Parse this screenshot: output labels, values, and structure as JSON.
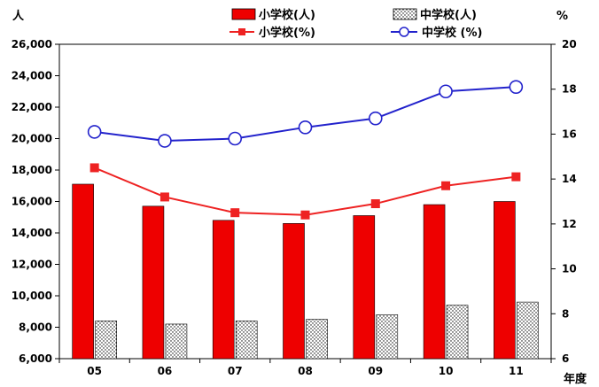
{
  "chart_data": {
    "type": "bar",
    "categories": [
      "05",
      "06",
      "07",
      "08",
      "09",
      "10",
      "11"
    ],
    "xlabel": "年度",
    "y_left": {
      "unit": "人",
      "ylim": [
        6000,
        26000
      ],
      "ticks": [
        "6,000",
        "8,000",
        "10,000",
        "12,000",
        "14,000",
        "16,000",
        "18,000",
        "20,000",
        "22,000",
        "24,000",
        "26,000"
      ]
    },
    "y_right": {
      "unit": "%",
      "ylim": [
        6,
        20
      ],
      "ticks": [
        "6",
        "8",
        "10",
        "12",
        "14",
        "16",
        "18",
        "20"
      ]
    },
    "series": [
      {
        "name": "小学校(人)",
        "kind": "bar",
        "axis": "left",
        "color": "#ee0000",
        "values": [
          17100,
          15700,
          14800,
          14600,
          15100,
          15800,
          16000
        ]
      },
      {
        "name": "中学校(人)",
        "kind": "bar-dotted",
        "axis": "left",
        "color": "#ffffff",
        "values": [
          8400,
          8200,
          8400,
          8500,
          8800,
          9400,
          9600
        ]
      },
      {
        "name": "小学校(%)",
        "kind": "line",
        "axis": "right",
        "color": "#ee2222",
        "values": [
          14.5,
          13.2,
          12.5,
          12.4,
          12.9,
          13.7,
          14.1
        ]
      },
      {
        "name": "中学校 (%)",
        "kind": "line",
        "axis": "right",
        "color": "#2222cc",
        "values": [
          16.1,
          15.7,
          15.8,
          16.3,
          16.7,
          17.9,
          18.1
        ]
      }
    ],
    "legend": "top",
    "grid": false
  }
}
